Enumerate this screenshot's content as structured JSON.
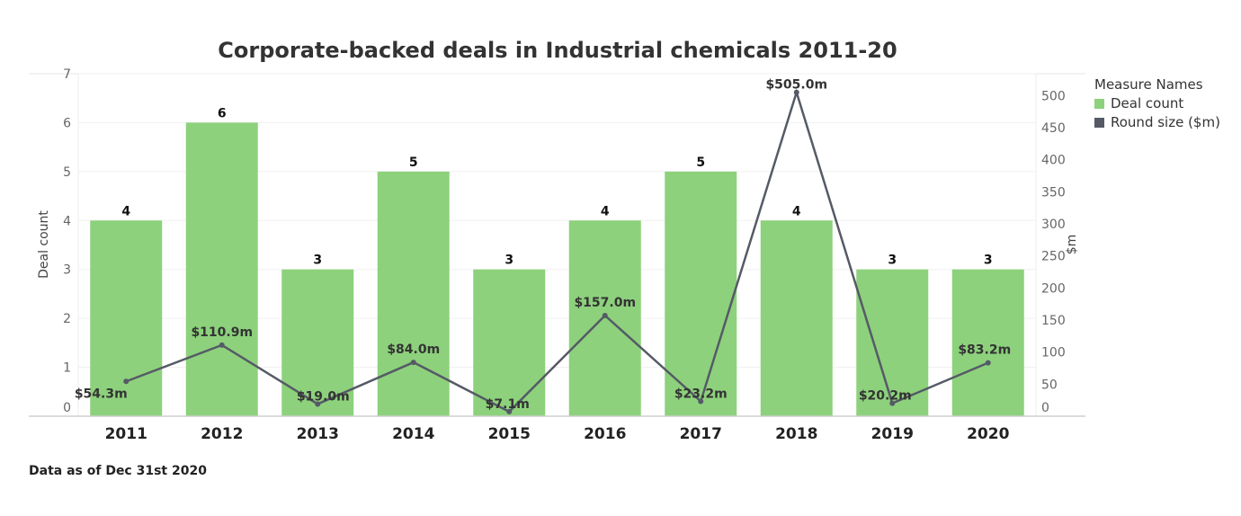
{
  "chart_data": {
    "type": "bar",
    "title": "Corporate-backed deals in Industrial chemicals 2011-20",
    "categories": [
      "2011",
      "2012",
      "2013",
      "2014",
      "2015",
      "2016",
      "2017",
      "2018",
      "2019",
      "2020"
    ],
    "series": [
      {
        "name": "Deal count",
        "type": "bar",
        "axis": "left",
        "color": "#8dd17c",
        "values": [
          4,
          6,
          3,
          5,
          3,
          4,
          5,
          4,
          3,
          3
        ],
        "labels": [
          "4",
          "6",
          "3",
          "5",
          "3",
          "4",
          "5",
          "4",
          "3",
          "3"
        ]
      },
      {
        "name": "Round size ($m)",
        "type": "line",
        "axis": "right",
        "color": "#555a66",
        "values": [
          54.3,
          110.9,
          19.0,
          84.0,
          7.1,
          157.0,
          23.2,
          505.0,
          20.2,
          83.2
        ],
        "labels": [
          "$54.3m",
          "$110.9m",
          "$19.0m",
          "$84.0m",
          "$7.1m",
          "$157.0m",
          "$23.2m",
          "$505.0m",
          "$20.2m",
          "$83.2m"
        ]
      }
    ],
    "ylabel": "Deal count",
    "y2label": "$m",
    "ylim": [
      0,
      7
    ],
    "y2lim": [
      0,
      534
    ],
    "yticks": [
      "0",
      "1",
      "2",
      "3",
      "4",
      "5",
      "6",
      "7"
    ],
    "y2ticks": [
      "0",
      "50",
      "100",
      "150",
      "200",
      "250",
      "300",
      "350",
      "400",
      "450",
      "500"
    ],
    "grid": true,
    "legend": {
      "title": "Measure Names",
      "position": "right"
    }
  },
  "footnote": "Data as of Dec 31st 2020"
}
